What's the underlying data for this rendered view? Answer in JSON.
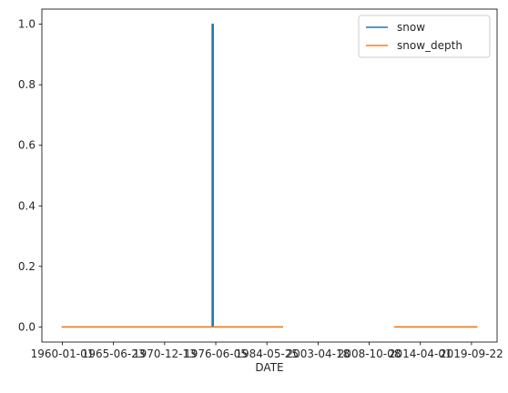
{
  "chart_data": {
    "type": "line",
    "title": "",
    "xlabel": "DATE",
    "ylabel": "",
    "ylim": [
      -0.05,
      1.05
    ],
    "xlim": [
      -0.4,
      8.5
    ],
    "grid": false,
    "legend_position": "top-right",
    "x_ticks": [
      {
        "pos": 0,
        "label": "1960-01-01"
      },
      {
        "pos": 1,
        "label": "1965-06-23"
      },
      {
        "pos": 2,
        "label": "1970-12-13"
      },
      {
        "pos": 3,
        "label": "1976-06-05"
      },
      {
        "pos": 4,
        "label": "1984-05-25"
      },
      {
        "pos": 5,
        "label": "2003-04-18"
      },
      {
        "pos": 6,
        "label": "2008-10-08"
      },
      {
        "pos": 7,
        "label": "2014-04-01"
      },
      {
        "pos": 8,
        "label": "2019-09-22"
      }
    ],
    "y_ticks": [
      0.0,
      0.2,
      0.4,
      0.6,
      0.8,
      1.0
    ],
    "y_tick_labels": [
      "0.0",
      "0.2",
      "0.4",
      "0.6",
      "0.8",
      "1.0"
    ],
    "series": [
      {
        "name": "snow",
        "color": "#1f77b4",
        "segments": [
          [
            [
              0,
              0
            ],
            [
              2.93,
              0
            ],
            [
              2.93,
              1.0
            ],
            [
              2.95,
              1.0
            ],
            [
              2.95,
              0
            ],
            [
              4.3,
              0
            ]
          ],
          [
            [
              6.5,
              0
            ],
            [
              8.1,
              0
            ]
          ]
        ]
      },
      {
        "name": "snow_depth",
        "color": "#ff7f0e",
        "segments": [
          [
            [
              0,
              0
            ],
            [
              4.3,
              0
            ]
          ],
          [
            [
              6.5,
              0
            ],
            [
              8.1,
              0
            ]
          ]
        ]
      }
    ]
  }
}
